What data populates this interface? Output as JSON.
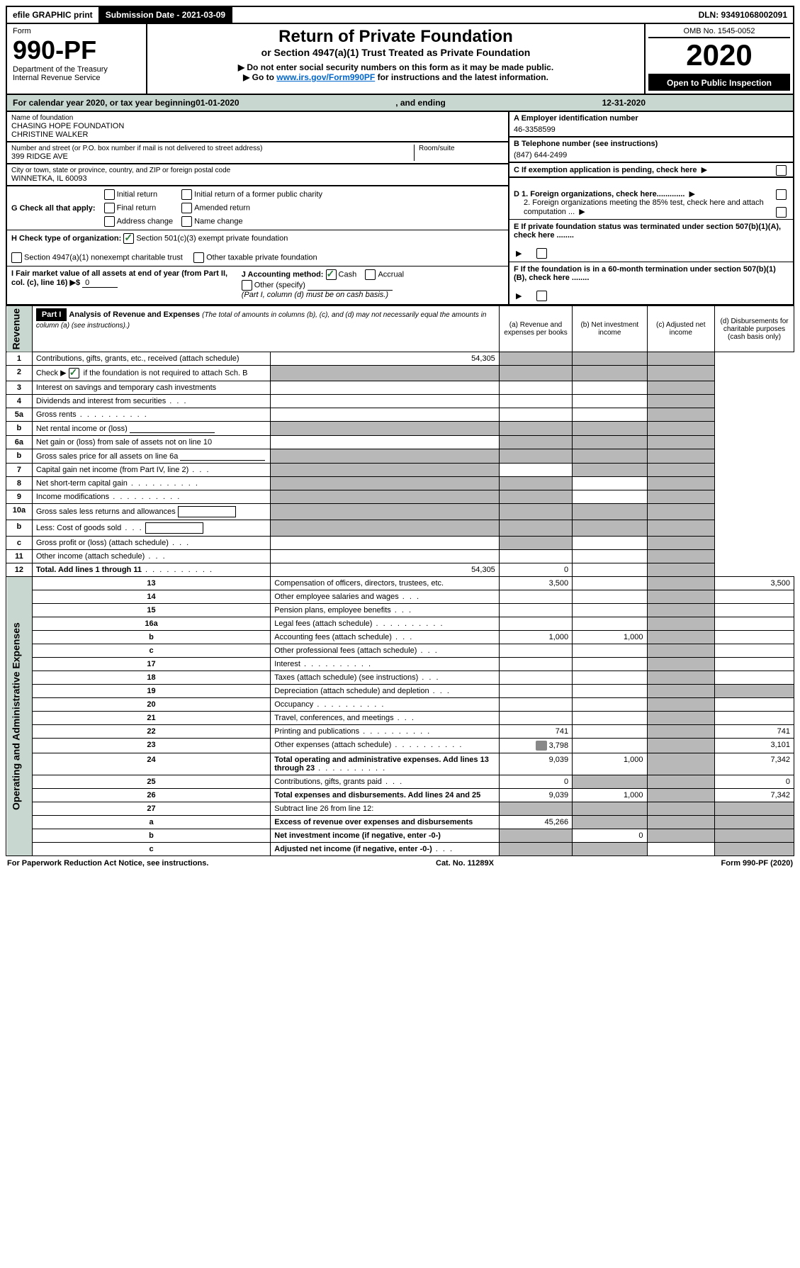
{
  "colors": {
    "header_green": "#c8d8d0",
    "shaded_cell": "#b8b8b8",
    "black": "#000000",
    "white": "#ffffff",
    "link": "#0066cc",
    "checkmark": "#2a7a3a"
  },
  "topbar": {
    "efile": "efile GRAPHIC print",
    "submission": "Submission Date - 2021-03-09",
    "dln": "DLN: 93491068002091"
  },
  "header": {
    "form_label": "Form",
    "form_number": "990-PF",
    "dept": "Department of the Treasury",
    "irs": "Internal Revenue Service",
    "title": "Return of Private Foundation",
    "subtitle": "or Section 4947(a)(1) Trust Treated as Private Foundation",
    "note1": "▶ Do not enter social security numbers on this form as it may be made public.",
    "note2_pre": "▶ Go to ",
    "note2_link": "www.irs.gov/Form990PF",
    "note2_post": " for instructions and the latest information.",
    "omb": "OMB No. 1545-0052",
    "year": "2020",
    "open_public": "Open to Public Inspection"
  },
  "calendar": {
    "text_pre": "For calendar year 2020, or tax year beginning ",
    "begin": "01-01-2020",
    "mid": ", and ending ",
    "end": "12-31-2020"
  },
  "info": {
    "name_label": "Name of foundation",
    "name1": "CHASING HOPE FOUNDATION",
    "name2": "CHRISTINE WALKER",
    "addr_label": "Number and street (or P.O. box number if mail is not delivered to street address)",
    "room_label": "Room/suite",
    "addr": "399 RIDGE AVE",
    "city_label": "City or town, state or province, country, and ZIP or foreign postal code",
    "city": "WINNETKA, IL  60093",
    "A_label": "A Employer identification number",
    "A_val": "46-3358599",
    "B_label": "B Telephone number (see instructions)",
    "B_val": "(847) 644-2499",
    "C": "C  If exemption application is pending, check here",
    "D1": "D 1. Foreign organizations, check here.............",
    "D2": "2. Foreign organizations meeting the 85% test, check here and attach computation ...",
    "E": "E  If private foundation status was terminated under section 507(b)(1)(A), check here ........",
    "F": "F  If the foundation is in a 60-month termination under section 507(b)(1)(B), check here ........"
  },
  "checks": {
    "G_label": "G Check all that apply:",
    "G_initial": "Initial return",
    "G_initial_former": "Initial return of a former public charity",
    "G_final": "Final return",
    "G_amended": "Amended return",
    "G_address": "Address change",
    "G_name": "Name change",
    "H_label": "H Check type of organization:",
    "H_501c3": "Section 501(c)(3) exempt private foundation",
    "H_4947": "Section 4947(a)(1) nonexempt charitable trust",
    "H_other": "Other taxable private foundation",
    "I_label": "I Fair market value of all assets at end of year (from Part II, col. (c), line 16) ▶$",
    "I_val": "0",
    "J_label": "J Accounting method:",
    "J_cash": "Cash",
    "J_accrual": "Accrual",
    "J_other": "Other (specify)",
    "J_note": "(Part I, column (d) must be on cash basis.)"
  },
  "part1": {
    "label": "Part I",
    "title": "Analysis of Revenue and Expenses",
    "title_note": "(The total of amounts in columns (b), (c), and (d) may not necessarily equal the amounts in column (a) (see instructions).)",
    "col_a": "(a)   Revenue and expenses per books",
    "col_b": "(b)  Net investment income",
    "col_c": "(c)  Adjusted net income",
    "col_d": "(d)  Disbursements for charitable purposes (cash basis only)",
    "side_revenue": "Revenue",
    "side_expenses": "Operating and Administrative Expenses"
  },
  "rows": [
    {
      "n": "1",
      "desc": "Contributions, gifts, grants, etc., received (attach schedule)",
      "a": "54,305",
      "shade_b": true,
      "shade_c": true,
      "shade_d": true
    },
    {
      "n": "2",
      "desc": "Check ▶",
      "desc2": "if the foundation is not required to attach Sch. B",
      "check": true,
      "shade_a": true,
      "shade_b": true,
      "shade_c": true,
      "shade_d": true
    },
    {
      "n": "3",
      "desc": "Interest on savings and temporary cash investments",
      "shade_d": true
    },
    {
      "n": "4",
      "desc": "Dividends and interest from securities",
      "dots": "sm",
      "shade_d": true
    },
    {
      "n": "5a",
      "desc": "Gross rents",
      "dots": "lg",
      "shade_d": true
    },
    {
      "n": "b",
      "desc": "Net rental income or (loss)",
      "inline_line": true,
      "shade_a": true,
      "shade_b": true,
      "shade_c": true,
      "shade_d": true
    },
    {
      "n": "6a",
      "desc": "Net gain or (loss) from sale of assets not on line 10",
      "shade_b": true,
      "shade_c": true,
      "shade_d": true
    },
    {
      "n": "b",
      "desc": "Gross sales price for all assets on line 6a",
      "inline_line": true,
      "shade_a": true,
      "shade_b": true,
      "shade_c": true,
      "shade_d": true
    },
    {
      "n": "7",
      "desc": "Capital gain net income (from Part IV, line 2)",
      "dots": "sm",
      "shade_a": true,
      "shade_c": true,
      "shade_d": true
    },
    {
      "n": "8",
      "desc": "Net short-term capital gain",
      "dots": "lg",
      "shade_a": true,
      "shade_b": true,
      "shade_d": true
    },
    {
      "n": "9",
      "desc": "Income modifications",
      "dots": "lg",
      "shade_a": true,
      "shade_b": true,
      "shade_d": true
    },
    {
      "n": "10a",
      "desc": "Gross sales less returns and allowances",
      "inline_box": true,
      "shade_a": true,
      "shade_b": true,
      "shade_c": true,
      "shade_d": true
    },
    {
      "n": "b",
      "desc": "Less: Cost of goods sold",
      "dots": "sm",
      "inline_box": true,
      "shade_a": true,
      "shade_b": true,
      "shade_c": true,
      "shade_d": true
    },
    {
      "n": "c",
      "desc": "Gross profit or (loss) (attach schedule)",
      "dots": "sm",
      "shade_b": true,
      "shade_d": true
    },
    {
      "n": "11",
      "desc": "Other income (attach schedule)",
      "dots": "sm",
      "shade_d": true
    },
    {
      "n": "12",
      "desc": "Total. Add lines 1 through 11",
      "dots": "lg",
      "bold": true,
      "a": "54,305",
      "b": "0",
      "shade_d": true
    },
    {
      "n": "13",
      "desc": "Compensation of officers, directors, trustees, etc.",
      "a": "3,500",
      "shade_c": true,
      "d": "3,500"
    },
    {
      "n": "14",
      "desc": "Other employee salaries and wages",
      "dots": "sm",
      "shade_c": true
    },
    {
      "n": "15",
      "desc": "Pension plans, employee benefits",
      "dots": "sm",
      "shade_c": true
    },
    {
      "n": "16a",
      "desc": "Legal fees (attach schedule)",
      "dots": "lg",
      "shade_c": true
    },
    {
      "n": "b",
      "desc": "Accounting fees (attach schedule)",
      "dots": "sm",
      "a": "1,000",
      "b": "1,000",
      "shade_c": true
    },
    {
      "n": "c",
      "desc": "Other professional fees (attach schedule)",
      "dots": "sm",
      "shade_c": true
    },
    {
      "n": "17",
      "desc": "Interest",
      "dots": "lg",
      "shade_c": true
    },
    {
      "n": "18",
      "desc": "Taxes (attach schedule) (see instructions)",
      "dots": "sm",
      "shade_c": true
    },
    {
      "n": "19",
      "desc": "Depreciation (attach schedule) and depletion",
      "dots": "sm",
      "shade_c": true,
      "shade_d": true
    },
    {
      "n": "20",
      "desc": "Occupancy",
      "dots": "lg",
      "shade_c": true
    },
    {
      "n": "21",
      "desc": "Travel, conferences, and meetings",
      "dots": "sm",
      "shade_c": true
    },
    {
      "n": "22",
      "desc": "Printing and publications",
      "dots": "lg",
      "a": "741",
      "shade_c": true,
      "d": "741"
    },
    {
      "n": "23",
      "desc": "Other expenses (attach schedule)",
      "dots": "lg",
      "icon": true,
      "a": "3,798",
      "shade_c": true,
      "d": "3,101"
    },
    {
      "n": "24",
      "desc": "Total operating and administrative expenses. Add lines 13 through 23",
      "dots": "lg",
      "bold": true,
      "a": "9,039",
      "b": "1,000",
      "shade_c": true,
      "d": "7,342"
    },
    {
      "n": "25",
      "desc": "Contributions, gifts, grants paid",
      "dots": "sm",
      "a": "0",
      "shade_b": true,
      "shade_c": true,
      "d": "0"
    },
    {
      "n": "26",
      "desc": "Total expenses and disbursements. Add lines 24 and 25",
      "bold": true,
      "a": "9,039",
      "b": "1,000",
      "shade_c": true,
      "d": "7,342"
    },
    {
      "n": "27",
      "desc": "Subtract line 26 from line 12:",
      "shade_a": true,
      "shade_b": true,
      "shade_c": true,
      "shade_d": true
    },
    {
      "n": "a",
      "desc": "Excess of revenue over expenses and disbursements",
      "bold": true,
      "a": "45,266",
      "shade_b": true,
      "shade_c": true,
      "shade_d": true
    },
    {
      "n": "b",
      "desc": "Net investment income (if negative, enter -0-)",
      "bold": true,
      "shade_a": true,
      "b": "0",
      "shade_c": true,
      "shade_d": true
    },
    {
      "n": "c",
      "desc": "Adjusted net income (if negative, enter -0-)",
      "dots": "sm",
      "bold": true,
      "shade_a": true,
      "shade_b": true,
      "shade_d": true
    }
  ],
  "footer": {
    "left": "For Paperwork Reduction Act Notice, see instructions.",
    "center": "Cat. No. 11289X",
    "right": "Form 990-PF (2020)"
  }
}
